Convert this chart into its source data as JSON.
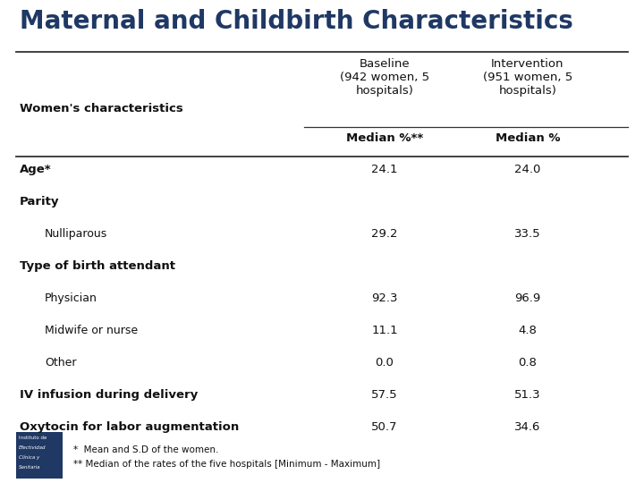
{
  "title": "Maternal and Childbirth Characteristics",
  "title_color": "#1f3864",
  "title_fontsize": 20,
  "title_fontweight": "bold",
  "bg_color": "#ffffff",
  "col_header_1": "Baseline\n(942 women, 5\nhospitals)",
  "col_header_2": "Intervention\n(951 women, 5\nhospitals)",
  "col_subheader_1": "Median %**",
  "col_subheader_2": "Median %",
  "col_label": "Women's characteristics",
  "rows": [
    {
      "label": "Age*",
      "indent": 0,
      "bold": true,
      "v1": "24.1",
      "v2": "24.0"
    },
    {
      "label": "Parity",
      "indent": 0,
      "bold": true,
      "v1": "",
      "v2": ""
    },
    {
      "label": "Nulliparous",
      "indent": 1,
      "bold": false,
      "v1": "29.2",
      "v2": "33.5"
    },
    {
      "label": "Type of birth attendant",
      "indent": 0,
      "bold": true,
      "v1": "",
      "v2": ""
    },
    {
      "label": "Physician",
      "indent": 1,
      "bold": false,
      "v1": "92.3",
      "v2": "96.9"
    },
    {
      "label": "Midwife or nurse",
      "indent": 1,
      "bold": false,
      "v1": "11.1",
      "v2": "4.8"
    },
    {
      "label": "Other",
      "indent": 1,
      "bold": false,
      "v1": "0.0",
      "v2": "0.8"
    },
    {
      "label": "IV infusion during delivery",
      "indent": 0,
      "bold": true,
      "v1": "57.5",
      "v2": "51.3"
    },
    {
      "label": "Oxytocin for labor augmentation",
      "indent": 0,
      "bold": true,
      "v1": "50.7",
      "v2": "34.6"
    }
  ],
  "footnote1": "*  Mean and S.D of the women.",
  "footnote2": "** Median of the rates of the five hospitals [Minimum - Maximum]",
  "text_color": "#111111",
  "header_text_color": "#111111",
  "line_color": "#333333",
  "logo_color": "#1f3864",
  "logo_lines": [
    "Instituto de",
    "Efectividad",
    "Clínica y",
    "Sanitaria"
  ]
}
